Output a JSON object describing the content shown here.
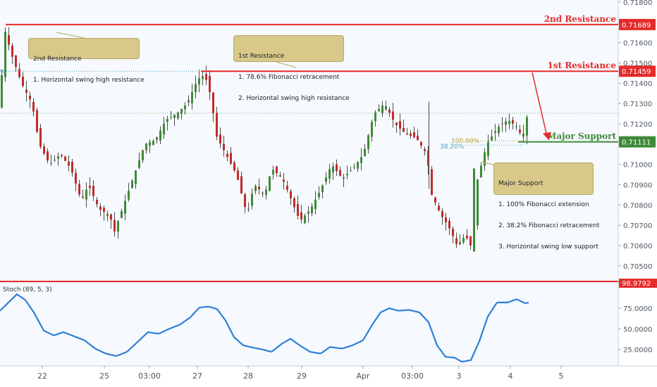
{
  "chart_data": [
    {
      "type": "candlestick",
      "ylim": [
        0.7043,
        0.7181
      ],
      "y_ticks": [
        "0.71800",
        "0.71700",
        "0.71600",
        "0.71500",
        "0.71400",
        "0.71300",
        "0.71200",
        "0.71100",
        "0.71000",
        "0.70900",
        "0.70800",
        "0.70700",
        "0.70600",
        "0.70500"
      ],
      "x_ticks": [
        "22",
        "25",
        "03:00",
        "27",
        "28",
        "29",
        "Apr",
        "03:00",
        "3",
        "4",
        "5"
      ],
      "current_price": 0.71252,
      "levels": [
        {
          "name": "2nd Resistance",
          "price_label": "0.71689",
          "value": 0.71689,
          "color": "#e52b2b"
        },
        {
          "name": "1st Resistance",
          "price_label": "0.71459",
          "value": 0.71459,
          "color": "#e52b2b"
        },
        {
          "name": "Major Support",
          "price_label": "0.71111",
          "value": 0.71111,
          "color": "#3f8a3a"
        }
      ],
      "fib_labels": {
        "left_pct": "%",
        "pct_100": "100.00%",
        "pct_382": "38.20%"
      },
      "series_anchors": [
        [
          0,
          0.7128
        ],
        [
          5,
          0.7168
        ],
        [
          15,
          0.7155
        ],
        [
          30,
          0.714
        ],
        [
          45,
          0.713
        ],
        [
          55,
          0.711
        ],
        [
          70,
          0.71
        ],
        [
          85,
          0.7105
        ],
        [
          100,
          0.7098
        ],
        [
          115,
          0.7082
        ],
        [
          125,
          0.709
        ],
        [
          140,
          0.7078
        ],
        [
          155,
          0.7075
        ],
        [
          162,
          0.7067
        ],
        [
          175,
          0.708
        ],
        [
          190,
          0.7095
        ],
        [
          205,
          0.711
        ],
        [
          220,
          0.7112
        ],
        [
          235,
          0.7122
        ],
        [
          250,
          0.7125
        ],
        [
          265,
          0.713
        ],
        [
          280,
          0.7142
        ],
        [
          290,
          0.7144
        ],
        [
          300,
          0.7132
        ],
        [
          305,
          0.7115
        ],
        [
          320,
          0.7105
        ],
        [
          335,
          0.7095
        ],
        [
          350,
          0.7075
        ],
        [
          360,
          0.709
        ],
        [
          375,
          0.7085
        ],
        [
          385,
          0.7098
        ],
        [
          400,
          0.7093
        ],
        [
          410,
          0.7085
        ],
        [
          425,
          0.7072
        ],
        [
          440,
          0.7078
        ],
        [
          455,
          0.7088
        ],
        [
          470,
          0.71
        ],
        [
          485,
          0.7093
        ],
        [
          500,
          0.7098
        ],
        [
          515,
          0.7105
        ],
        [
          530,
          0.7125
        ],
        [
          545,
          0.713
        ],
        [
          560,
          0.712
        ],
        [
          575,
          0.7115
        ],
        [
          590,
          0.7113
        ],
        [
          605,
          0.7105
        ],
        [
          612,
          0.7085
        ],
        [
          625,
          0.7075
        ],
        [
          635,
          0.707
        ],
        [
          648,
          0.706
        ],
        [
          660,
          0.7065
        ],
        [
          670,
          0.7058
        ],
        [
          675,
          0.709
        ],
        [
          690,
          0.711
        ],
        [
          705,
          0.7118
        ],
        [
          720,
          0.7122
        ],
        [
          735,
          0.7118
        ],
        [
          740,
          0.7112
        ],
        [
          750,
          0.7128
        ]
      ]
    },
    {
      "type": "line",
      "title": "Stoch (89, 5, 3)",
      "ylim": [
        5,
        105
      ],
      "y_ticks": [
        "75.0000",
        "50.0000",
        "25.0000"
      ],
      "y_tick_values": [
        75,
        50,
        25
      ],
      "max_label": "98.9792",
      "color": "#2e7fd9",
      "anchors": [
        [
          0,
          72
        ],
        [
          12,
          82
        ],
        [
          24,
          92
        ],
        [
          36,
          85
        ],
        [
          48,
          70
        ],
        [
          62,
          48
        ],
        [
          76,
          42
        ],
        [
          90,
          46
        ],
        [
          105,
          41
        ],
        [
          120,
          36
        ],
        [
          135,
          26
        ],
        [
          150,
          20
        ],
        [
          165,
          17
        ],
        [
          180,
          22
        ],
        [
          195,
          34
        ],
        [
          210,
          46
        ],
        [
          225,
          44
        ],
        [
          240,
          50
        ],
        [
          255,
          55
        ],
        [
          270,
          64
        ],
        [
          283,
          76
        ],
        [
          296,
          77
        ],
        [
          308,
          74
        ],
        [
          320,
          60
        ],
        [
          332,
          40
        ],
        [
          345,
          30
        ],
        [
          360,
          27
        ],
        [
          372,
          25
        ],
        [
          385,
          22
        ],
        [
          400,
          32
        ],
        [
          412,
          38
        ],
        [
          425,
          30
        ],
        [
          440,
          22
        ],
        [
          455,
          20
        ],
        [
          468,
          28
        ],
        [
          485,
          26
        ],
        [
          500,
          30
        ],
        [
          515,
          36
        ],
        [
          528,
          55
        ],
        [
          540,
          70
        ],
        [
          552,
          75
        ],
        [
          565,
          72
        ],
        [
          580,
          73
        ],
        [
          595,
          70
        ],
        [
          608,
          58
        ],
        [
          620,
          30
        ],
        [
          632,
          16
        ],
        [
          645,
          15
        ],
        [
          655,
          10
        ],
        [
          668,
          12
        ],
        [
          680,
          35
        ],
        [
          692,
          65
        ],
        [
          705,
          82
        ],
        [
          720,
          82
        ],
        [
          733,
          86
        ],
        [
          745,
          81
        ],
        [
          750,
          82
        ]
      ]
    }
  ],
  "annotations": {
    "r2_note": [
      "2nd Resistance",
      "1. Horizontal swing high resistance"
    ],
    "r1_note": [
      "1st Resistance",
      "1. 78.6% Fibonacci retracement",
      "2. Horizontal swing high resistance"
    ],
    "sup_note": [
      "Major Support",
      "1. 100% Fibonacci extension",
      "2. 38.2% Fibonacci retracement",
      "3. Horizontal swing low support"
    ]
  }
}
